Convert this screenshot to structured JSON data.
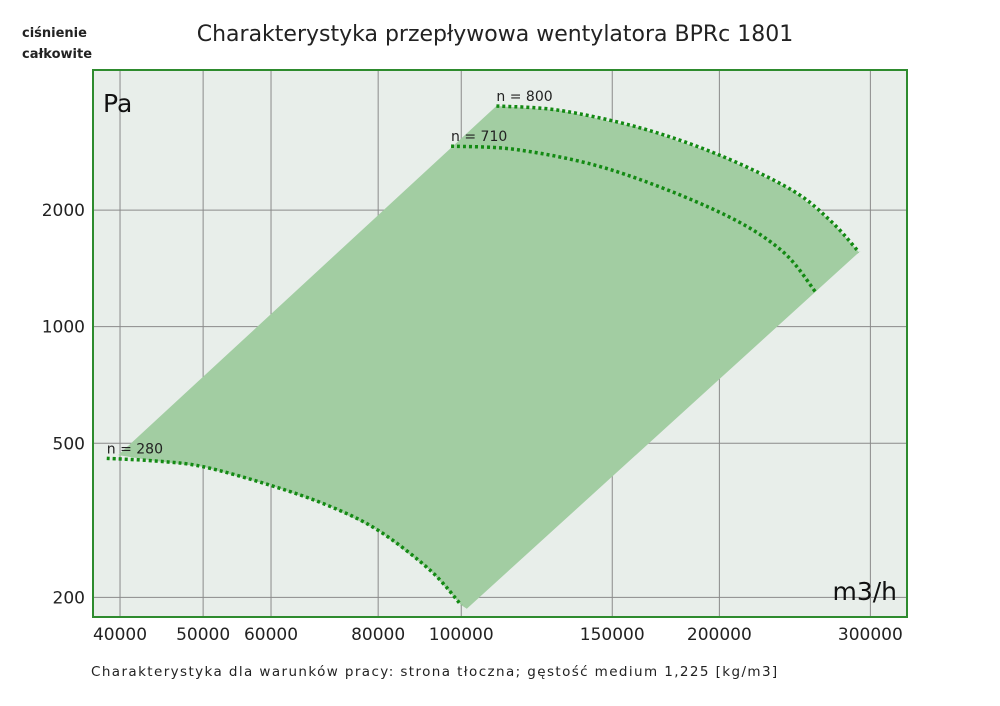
{
  "chart_data": {
    "type": "area",
    "title": "Charakterystyka przepływowa wentylatora BPRc 1801",
    "ylabel_lines": [
      "ciśnienie",
      "całkowite"
    ],
    "y_unit": "Pa",
    "x_unit": "m3/h",
    "footnote": "Charakterystyka dla warunków pracy: strona tłoczna; gęstość medium 1,225 [kg/m3]",
    "x_scale": "log",
    "y_scale": "log",
    "xlim": [
      37200,
      331000
    ],
    "ylim": [
      178,
      4600
    ],
    "grid": true,
    "x_ticks": [
      40000,
      50000,
      60000,
      80000,
      100000,
      150000,
      200000,
      300000
    ],
    "x_tick_labels": [
      "40000",
      "50000",
      "60000",
      "80000",
      "100000",
      "150000",
      "200000",
      "300000"
    ],
    "y_ticks": [
      200,
      500,
      1000,
      2000
    ],
    "y_tick_labels": [
      "200",
      "500",
      "1000",
      "2000"
    ],
    "series": [
      {
        "name": "n = 280",
        "label": "n = 280",
        "x": [
          38600,
          44000,
          50000,
          60000,
          70000,
          80000,
          92000,
          100000
        ],
        "y": [
          457,
          450,
          435,
          389,
          345,
          298,
          235,
          191
        ]
      },
      {
        "name": "n = 710",
        "label": "n = 710",
        "x": [
          97300,
          116900,
          150000,
          200000,
          236000,
          259000
        ],
        "y": [
          2925,
          2859,
          2536,
          1976,
          1577,
          1228
        ]
      },
      {
        "name": "n = 800",
        "label": "n = 800",
        "x": [
          109900,
          130100,
          162000,
          200000,
          243000,
          270000,
          291000
        ],
        "y": [
          3714,
          3620,
          3257,
          2774,
          2252,
          1870,
          1557
        ]
      }
    ],
    "region_boundary": {
      "left_edge": [
        [
          39800,
          466
        ],
        [
          109900,
          3714
        ]
      ],
      "right_edge": [
        [
          101500,
          187
        ],
        [
          291000,
          1557
        ]
      ]
    },
    "colors": {
      "plot_bg": "#e8eeea",
      "frame": "#2e8b2e",
      "region": "#a2cda2",
      "curve": "#138a13",
      "grid": "#8a8a8a"
    }
  }
}
